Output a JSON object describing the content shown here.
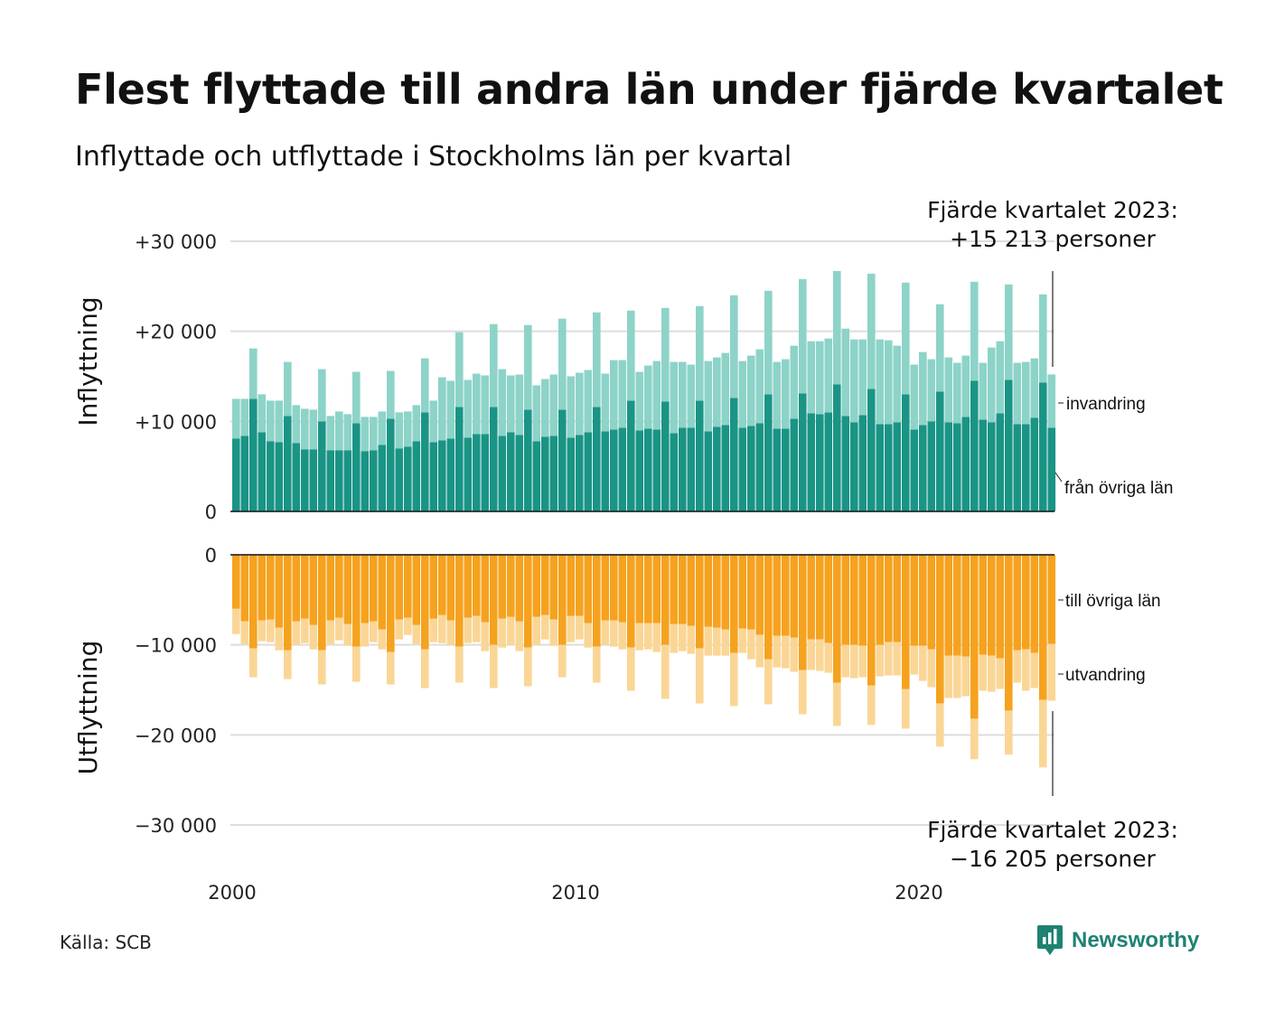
{
  "title": "Flest flyttade till andra län under fjärde kvartalet",
  "subtitle": "Inflyttade och utflyttade i Stockholms län per kvartal",
  "source": "Källa: SCB",
  "brand": "Newsworthy",
  "colors": {
    "in_other_counties": "#1a9485",
    "in_immigration": "#8dd3c8",
    "out_other_counties": "#f5a21f",
    "out_emigration": "#fad696",
    "brand": "#1e8272",
    "grid": "#dddddd"
  },
  "chart_data": {
    "type": "bar",
    "stacked": true,
    "quarters_per_year": 4,
    "x_tick_labels": [
      "2000",
      "2010",
      "2020"
    ],
    "panels": [
      {
        "axis_title": "Inflyttning",
        "ylim": [
          0,
          30000
        ],
        "y_ticks": [
          0,
          10000,
          20000,
          30000
        ],
        "y_tick_labels": [
          "0",
          "+10 000",
          "+20 000",
          "+30 000"
        ],
        "series": [
          {
            "name": "från övriga län",
            "values": [
              8100,
              8400,
              12500,
              8800,
              7800,
              7700,
              10600,
              7600,
              6900,
              6900,
              10000,
              6800,
              6800,
              6800,
              9800,
              6700,
              6800,
              7400,
              10300,
              7000,
              7200,
              7800,
              11000,
              7700,
              7900,
              8100,
              11600,
              8200,
              8600,
              8600,
              11600,
              8400,
              8800,
              8500,
              11300,
              7800,
              8300,
              8400,
              11300,
              8200,
              8500,
              8800,
              11600,
              8900,
              9100,
              9300,
              12300,
              9000,
              9200,
              9100,
              12200,
              8700,
              9300,
              9300,
              12300,
              8900,
              9400,
              9600,
              12600,
              9300,
              9500,
              9800,
              13000,
              9200,
              9200,
              10300,
              13100,
              10900,
              10800,
              11000,
              14100,
              10600,
              9900,
              10700,
              13600,
              9700,
              9700,
              9900,
              13000,
              9100,
              9600,
              10000,
              13300,
              9900,
              9800,
              10500,
              14500,
              10200,
              9900,
              10900,
              14600,
              9700,
              9700,
              10400,
              14300,
              9300
            ]
          },
          {
            "name": "invandring",
            "values": [
              4400,
              4100,
              5600,
              4200,
              4500,
              4600,
              6000,
              4200,
              4500,
              4400,
              5800,
              3800,
              4300,
              4000,
              5700,
              3800,
              3700,
              3700,
              5300,
              4000,
              3900,
              4000,
              6000,
              4600,
              7000,
              6400,
              8300,
              6400,
              6700,
              6500,
              9200,
              7400,
              6300,
              6700,
              9400,
              6200,
              6400,
              6800,
              10100,
              6800,
              6900,
              6900,
              10500,
              6400,
              7700,
              7500,
              10000,
              6500,
              7000,
              7600,
              10400,
              7900,
              7300,
              7000,
              10500,
              7800,
              7700,
              8000,
              11400,
              7400,
              7800,
              8200,
              11500,
              7400,
              7700,
              8100,
              12700,
              8000,
              8100,
              8200,
              12600,
              9700,
              9200,
              8400,
              12800,
              9400,
              9300,
              8500,
              12400,
              7200,
              8100,
              6900,
              9700,
              7200,
              6700,
              6800,
              11000,
              6300,
              8300,
              8000,
              10600,
              6800,
              6900,
              6600,
              9800,
              5913
            ]
          }
        ]
      },
      {
        "axis_title": "Utflyttning",
        "ylim": [
          -30000,
          0
        ],
        "y_ticks": [
          0,
          -10000,
          -20000,
          -30000
        ],
        "y_tick_labels": [
          "0",
          "−10 000",
          "−20 000",
          "−30 000"
        ],
        "series": [
          {
            "name": "till övriga län",
            "values": [
              -6000,
              -7400,
              -10400,
              -7300,
              -7200,
              -8100,
              -10600,
              -7400,
              -7100,
              -7800,
              -10600,
              -7300,
              -7000,
              -7700,
              -10200,
              -7600,
              -7400,
              -8300,
              -10800,
              -7200,
              -7000,
              -7800,
              -10500,
              -7100,
              -6700,
              -7300,
              -10200,
              -7000,
              -6800,
              -7500,
              -10000,
              -7100,
              -6900,
              -7400,
              -10300,
              -6900,
              -6700,
              -7200,
              -10000,
              -6800,
              -6800,
              -7600,
              -10200,
              -7300,
              -7300,
              -7500,
              -10300,
              -7600,
              -7600,
              -7600,
              -10000,
              -7700,
              -7700,
              -7900,
              -10400,
              -8000,
              -8100,
              -8300,
              -10900,
              -8200,
              -8300,
              -8900,
              -11600,
              -9000,
              -9000,
              -9200,
              -12800,
              -9400,
              -9400,
              -9800,
              -14200,
              -10000,
              -10000,
              -10100,
              -14500,
              -10000,
              -9700,
              -9700,
              -14900,
              -10100,
              -10100,
              -10500,
              -16500,
              -11200,
              -11200,
              -11300,
              -18200,
              -11100,
              -11200,
              -11500,
              -17300,
              -10600,
              -10500,
              -10900,
              -16100,
              -9900
            ]
          },
          {
            "name": "utvandring",
            "values": [
              -2800,
              -2500,
              -3200,
              -2300,
              -2500,
              -2500,
              -3200,
              -2600,
              -2700,
              -2700,
              -3800,
              -2600,
              -2500,
              -2400,
              -3900,
              -2600,
              -2300,
              -2200,
              -3600,
              -2200,
              -1900,
              -2100,
              -4300,
              -2600,
              -3100,
              -2700,
              -4000,
              -2800,
              -2900,
              -3200,
              -4800,
              -3200,
              -3100,
              -3300,
              -4300,
              -3100,
              -2700,
              -2900,
              -3600,
              -2900,
              -2600,
              -2700,
              -4000,
              -2700,
              -2900,
              -3000,
              -4800,
              -3000,
              -2900,
              -3200,
              -6000,
              -3200,
              -3000,
              -3100,
              -6100,
              -3200,
              -3100,
              -2900,
              -5900,
              -2700,
              -3300,
              -3600,
              -5000,
              -3500,
              -3600,
              -3800,
              -4900,
              -3400,
              -3500,
              -3300,
              -4800,
              -3600,
              -3700,
              -3500,
              -4400,
              -3500,
              -3700,
              -3700,
              -4400,
              -3200,
              -3900,
              -4200,
              -4800,
              -4700,
              -4700,
              -4400,
              -4500,
              -4000,
              -4000,
              -3400,
              -4900,
              -3600,
              -4600,
              -3900,
              -7500,
              -6305
            ]
          }
        ]
      }
    ],
    "annotations": [
      {
        "text_line1": "Fjärde kvartalet 2023:",
        "text_line2": "+15 213 personer",
        "value": 15213
      },
      {
        "text_line1": "Fjärde kvartalet 2023:",
        "text_line2": "−16 205 personer",
        "value": -16205
      }
    ],
    "grid": true
  }
}
